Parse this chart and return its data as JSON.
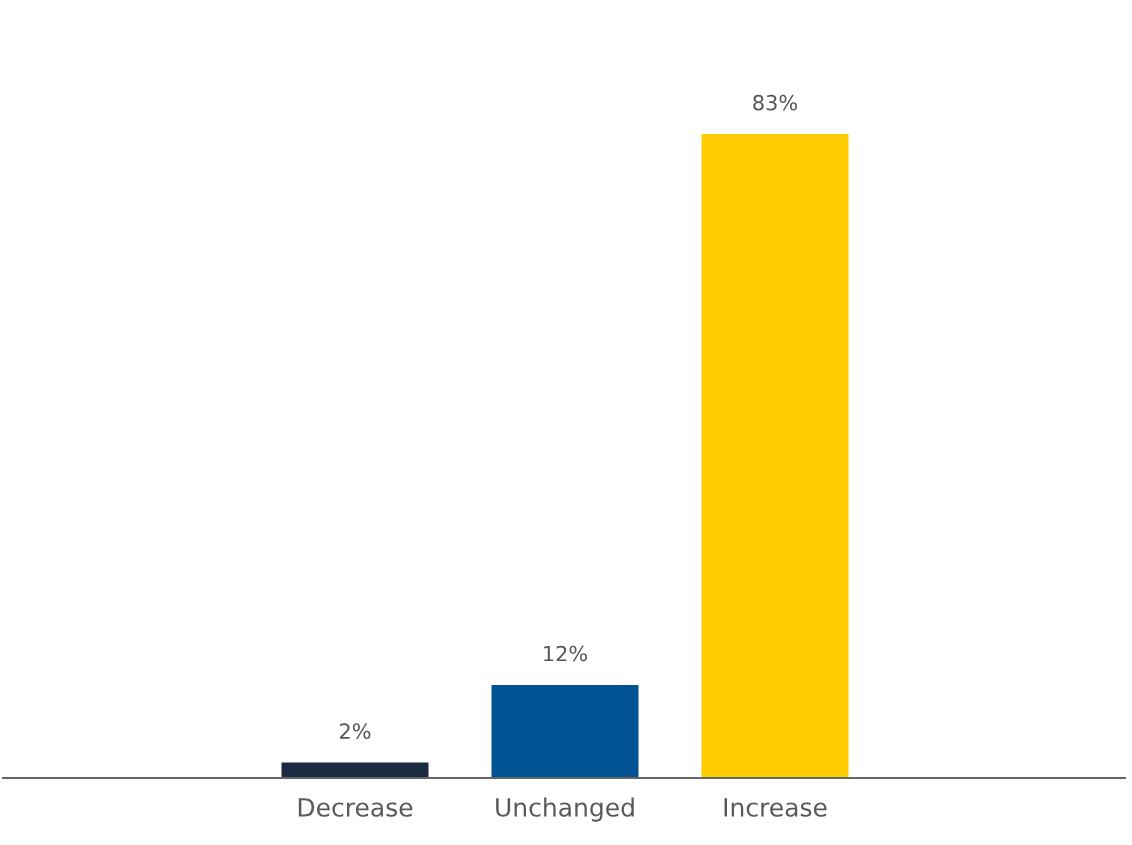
{
  "chart_data": {
    "type": "bar",
    "categories": [
      "Decrease",
      "Unchanged",
      "Increase"
    ],
    "values": [
      2,
      12,
      83
    ],
    "colors": [
      "#1a2b42",
      "#005293",
      "#ffcc00"
    ],
    "data_labels": true,
    "value_labels": [
      "2%",
      "12%",
      "83%"
    ],
    "grid": false,
    "legend": false
  }
}
